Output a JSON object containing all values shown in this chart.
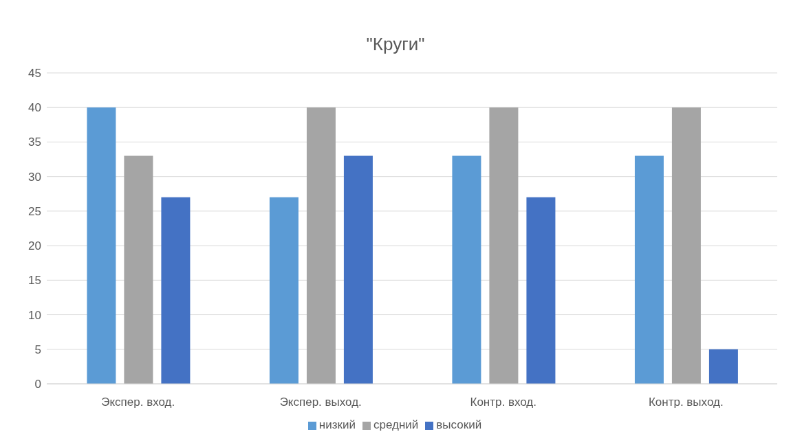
{
  "chart_data": {
    "type": "bar",
    "title": "\"Круги\"",
    "categories": [
      "Экспер. вход.",
      "Экспер. выход.",
      "Контр. вход.",
      "Контр. выход."
    ],
    "series": [
      {
        "name": "низкий",
        "color": "#5b9bd5",
        "values": [
          40,
          27,
          33,
          33
        ]
      },
      {
        "name": "средний",
        "color": "#a5a5a5",
        "values": [
          33,
          40,
          40,
          40
        ]
      },
      {
        "name": "высокий",
        "color": "#4472c4",
        "values": [
          27,
          33,
          27,
          5
        ]
      }
    ],
    "ylim": [
      0,
      45
    ],
    "yticks": [
      0,
      5,
      10,
      15,
      20,
      25,
      30,
      35,
      40,
      45
    ],
    "grid": "y",
    "legend": "bottom"
  }
}
